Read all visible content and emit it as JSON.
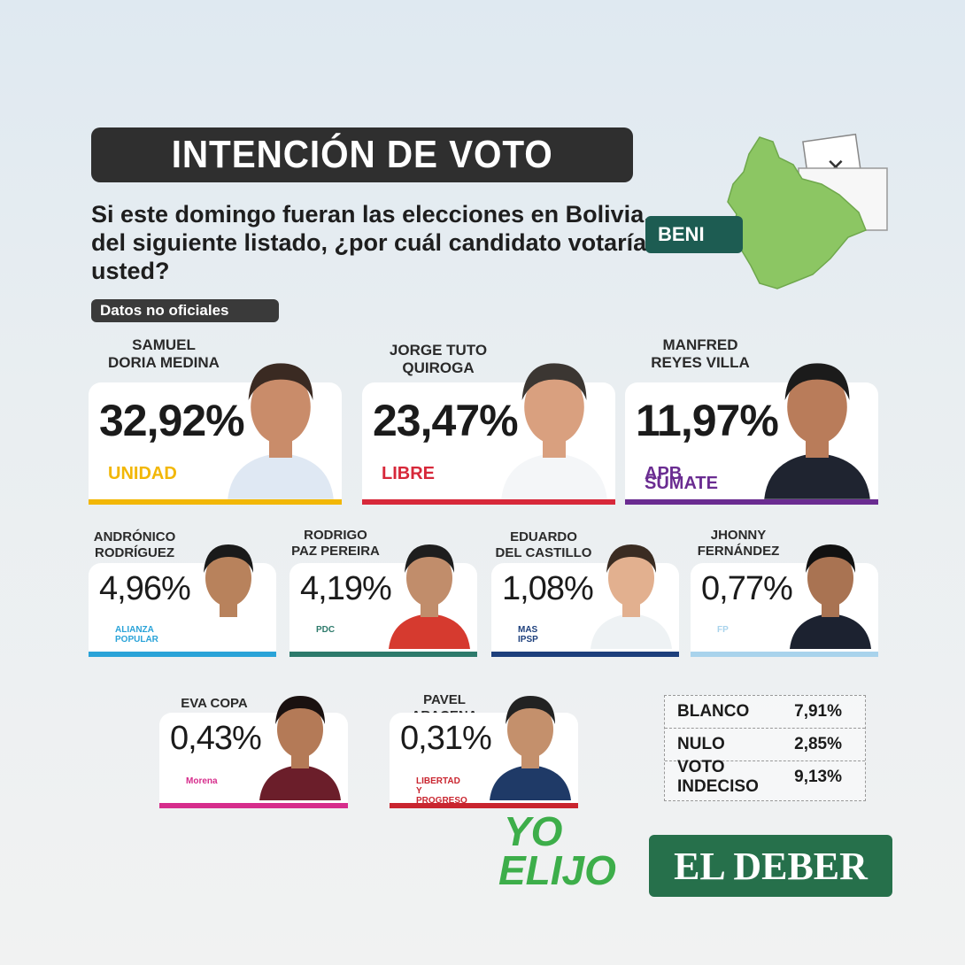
{
  "header": {
    "title": "INTENCIÓN DE VOTO",
    "question": "Si este domingo fueran las elecciones en Bolivia, del siguiente listado, ¿por cuál candidato votaría usted?",
    "note": "Datos no oficiales",
    "region": "BENI"
  },
  "candidates": [
    {
      "name": "SAMUEL\nDORIA MEDINA",
      "percent": "32,92%",
      "party": "UNIDAD",
      "color": "#f2b705"
    },
    {
      "name": "JORGE TUTO\nQUIROGA",
      "percent": "23,47%",
      "party": "LIBRE",
      "color": "#d7283a"
    },
    {
      "name": "MANFRED\nREYES VILLA",
      "percent": "11,97%",
      "party": "APB SÚMATE",
      "color": "#6a2c91"
    },
    {
      "name": "ANDRÓNICO\nRODRÍGUEZ",
      "percent": "4,96%",
      "party": "ALIANZA POPULAR",
      "color": "#2aa3d8"
    },
    {
      "name": "RODRIGO\nPAZ PEREIRA",
      "percent": "4,19%",
      "party": "PDC",
      "color": "#2d7a6b"
    },
    {
      "name": "EDUARDO\nDEL CASTILLO",
      "percent": "1,08%",
      "party": "MAS IPSP",
      "color": "#1d3f7c"
    },
    {
      "name": "JHONNY\nFERNÁNDEZ",
      "percent": "0,77%",
      "party": "FP",
      "color": "#a9d3ec"
    },
    {
      "name": "EVA COPA",
      "percent": "0,43%",
      "party": "Morena",
      "color": "#d62d8c"
    },
    {
      "name": "PAVEL ARACENA",
      "percent": "0,31%",
      "party": "LIBERTAD Y PROGRESO",
      "color": "#c9252f"
    }
  ],
  "others": [
    {
      "label": "BLANCO",
      "value": "7,91%"
    },
    {
      "label": "NULO",
      "value": "2,85%"
    },
    {
      "label": "VOTO INDECISO",
      "value": "9,13%"
    }
  ],
  "branding": {
    "yo_elijo_line1": "YO",
    "yo_elijo_line2": "ELIJO",
    "yo_elijo_color": "#3dae4a",
    "newspaper": "EL DEBER",
    "newspaper_color": "#26704b"
  }
}
